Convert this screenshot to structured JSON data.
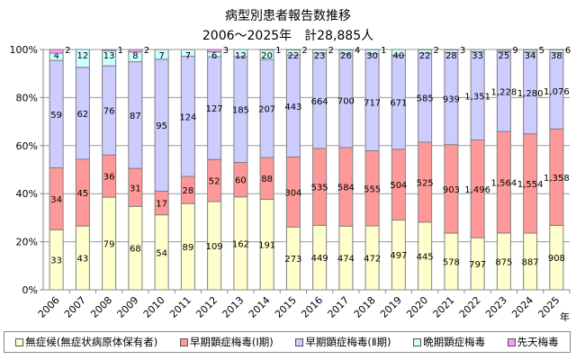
{
  "chart_data": {
    "type": "bar",
    "stacking": "percent",
    "title": "病型別患者報告数推移",
    "subtitle": "2006～2025年　計28,885人",
    "xlabel": "年",
    "ylabel": "",
    "ylim": [
      0,
      100
    ],
    "yticks": [
      "0%",
      "20%",
      "40%",
      "60%",
      "80%",
      "100%"
    ],
    "grid": true,
    "legend_position": "bottom",
    "categories": [
      "2006",
      "2007",
      "2008",
      "2009",
      "2010",
      "2011",
      "2012",
      "2013",
      "2014",
      "2015",
      "2016",
      "2017",
      "2018",
      "2019",
      "2020",
      "2021",
      "2022",
      "2023",
      "2024",
      "2025"
    ],
    "series": [
      {
        "name": "無症候(無症状病原体保有者)",
        "color": "#ffffcc",
        "values": [
          33,
          43,
          79,
          68,
          54,
          89,
          109,
          162,
          191,
          273,
          449,
          474,
          472,
          497,
          445,
          578,
          797,
          875,
          887,
          908
        ]
      },
      {
        "name": "早期顕症梅毒(Ⅰ期)",
        "color": "#ff9999",
        "values": [
          34,
          45,
          36,
          31,
          17,
          28,
          52,
          60,
          88,
          304,
          535,
          584,
          555,
          504,
          525,
          903,
          1496,
          1564,
          1554,
          1358
        ]
      },
      {
        "name": "早期顕症梅毒(Ⅱ期)",
        "color": "#ccccff",
        "values": [
          59,
          62,
          76,
          87,
          95,
          124,
          127,
          185,
          207,
          443,
          664,
          700,
          717,
          671,
          585,
          939,
          1351,
          1228,
          1280,
          1076
        ]
      },
      {
        "name": "晩期顕症梅毒",
        "color": "#ccffff",
        "values": [
          4,
          12,
          13,
          8,
          7,
          7,
          6,
          12,
          20,
          22,
          23,
          26,
          30,
          40,
          22,
          28,
          33,
          25,
          34,
          38
        ]
      },
      {
        "name": "先天梅毒",
        "color": "#ff99ff",
        "values": [
          2,
          0,
          1,
          2,
          0,
          0,
          3,
          0,
          1,
          2,
          2,
          4,
          1,
          0,
          2,
          3,
          0,
          9,
          5,
          6
        ]
      }
    ]
  }
}
